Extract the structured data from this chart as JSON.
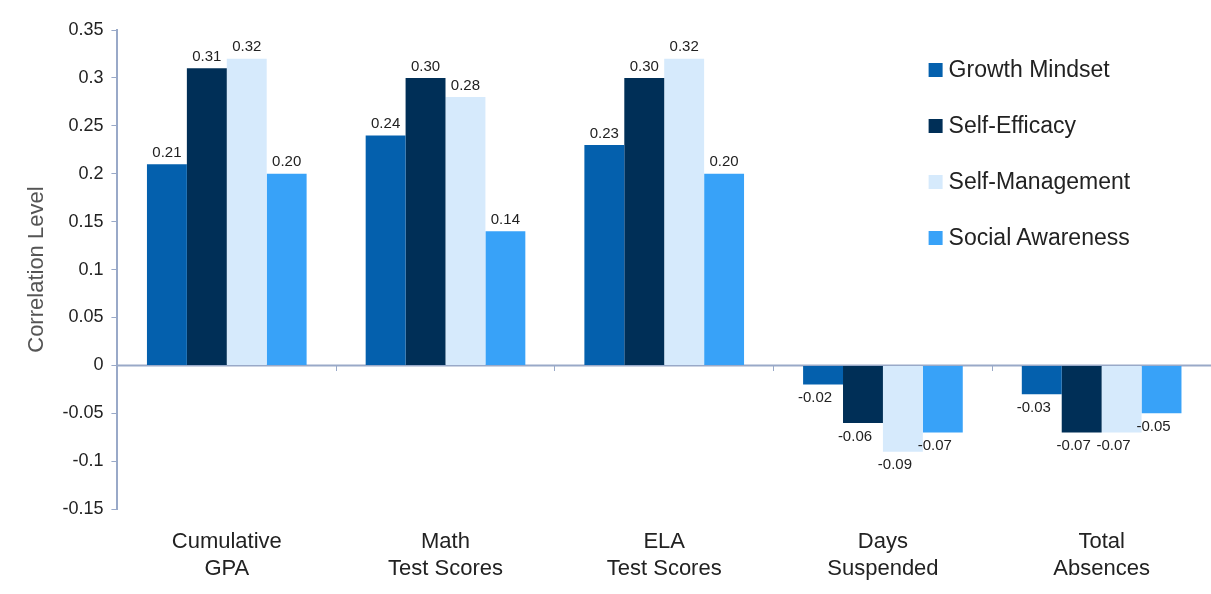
{
  "chart_data": {
    "type": "bar",
    "ylabel": "Correlation Level",
    "categories": [
      "Cumulative GPA",
      "Math Test Scores",
      "ELA Test Scores",
      "Days Suspended",
      "Total Absences"
    ],
    "series": [
      {
        "name": "Growth Mindset",
        "color": "#0460ad",
        "values": [
          0.21,
          0.24,
          0.23,
          -0.02,
          -0.03
        ],
        "value_labels": [
          "0.21",
          "0.24",
          "0.23",
          "-0.02",
          "-0.03"
        ]
      },
      {
        "name": "Self-Efficacy",
        "color": "#002f57",
        "values": [
          0.31,
          0.3,
          0.3,
          -0.06,
          -0.07
        ],
        "value_labels": [
          "0.31",
          "0.30",
          "0.30",
          "-0.06",
          "-0.07"
        ]
      },
      {
        "name": "Self-Management",
        "color": "#d6eafc",
        "values": [
          0.32,
          0.28,
          0.32,
          -0.09,
          -0.07
        ],
        "value_labels": [
          "0.32",
          "0.28",
          "0.32",
          "-0.09",
          "-0.07"
        ]
      },
      {
        "name": "Social Awareness",
        "color": "#38a2f8",
        "values": [
          0.2,
          0.14,
          0.2,
          -0.07,
          -0.05
        ],
        "value_labels": [
          "0.20",
          "0.14",
          "0.20",
          "-0.07",
          "-0.05"
        ]
      }
    ],
    "ylim": [
      -0.15,
      0.35
    ],
    "yticks": [
      -0.15,
      -0.1,
      -0.05,
      0,
      0.05,
      0.1,
      0.15,
      0.2,
      0.25,
      0.3,
      0.35
    ],
    "ref_lines": [
      {
        "axis": "y",
        "value": 0,
        "color": "#99a9c8"
      }
    ],
    "grid": false,
    "legend": "top right"
  }
}
